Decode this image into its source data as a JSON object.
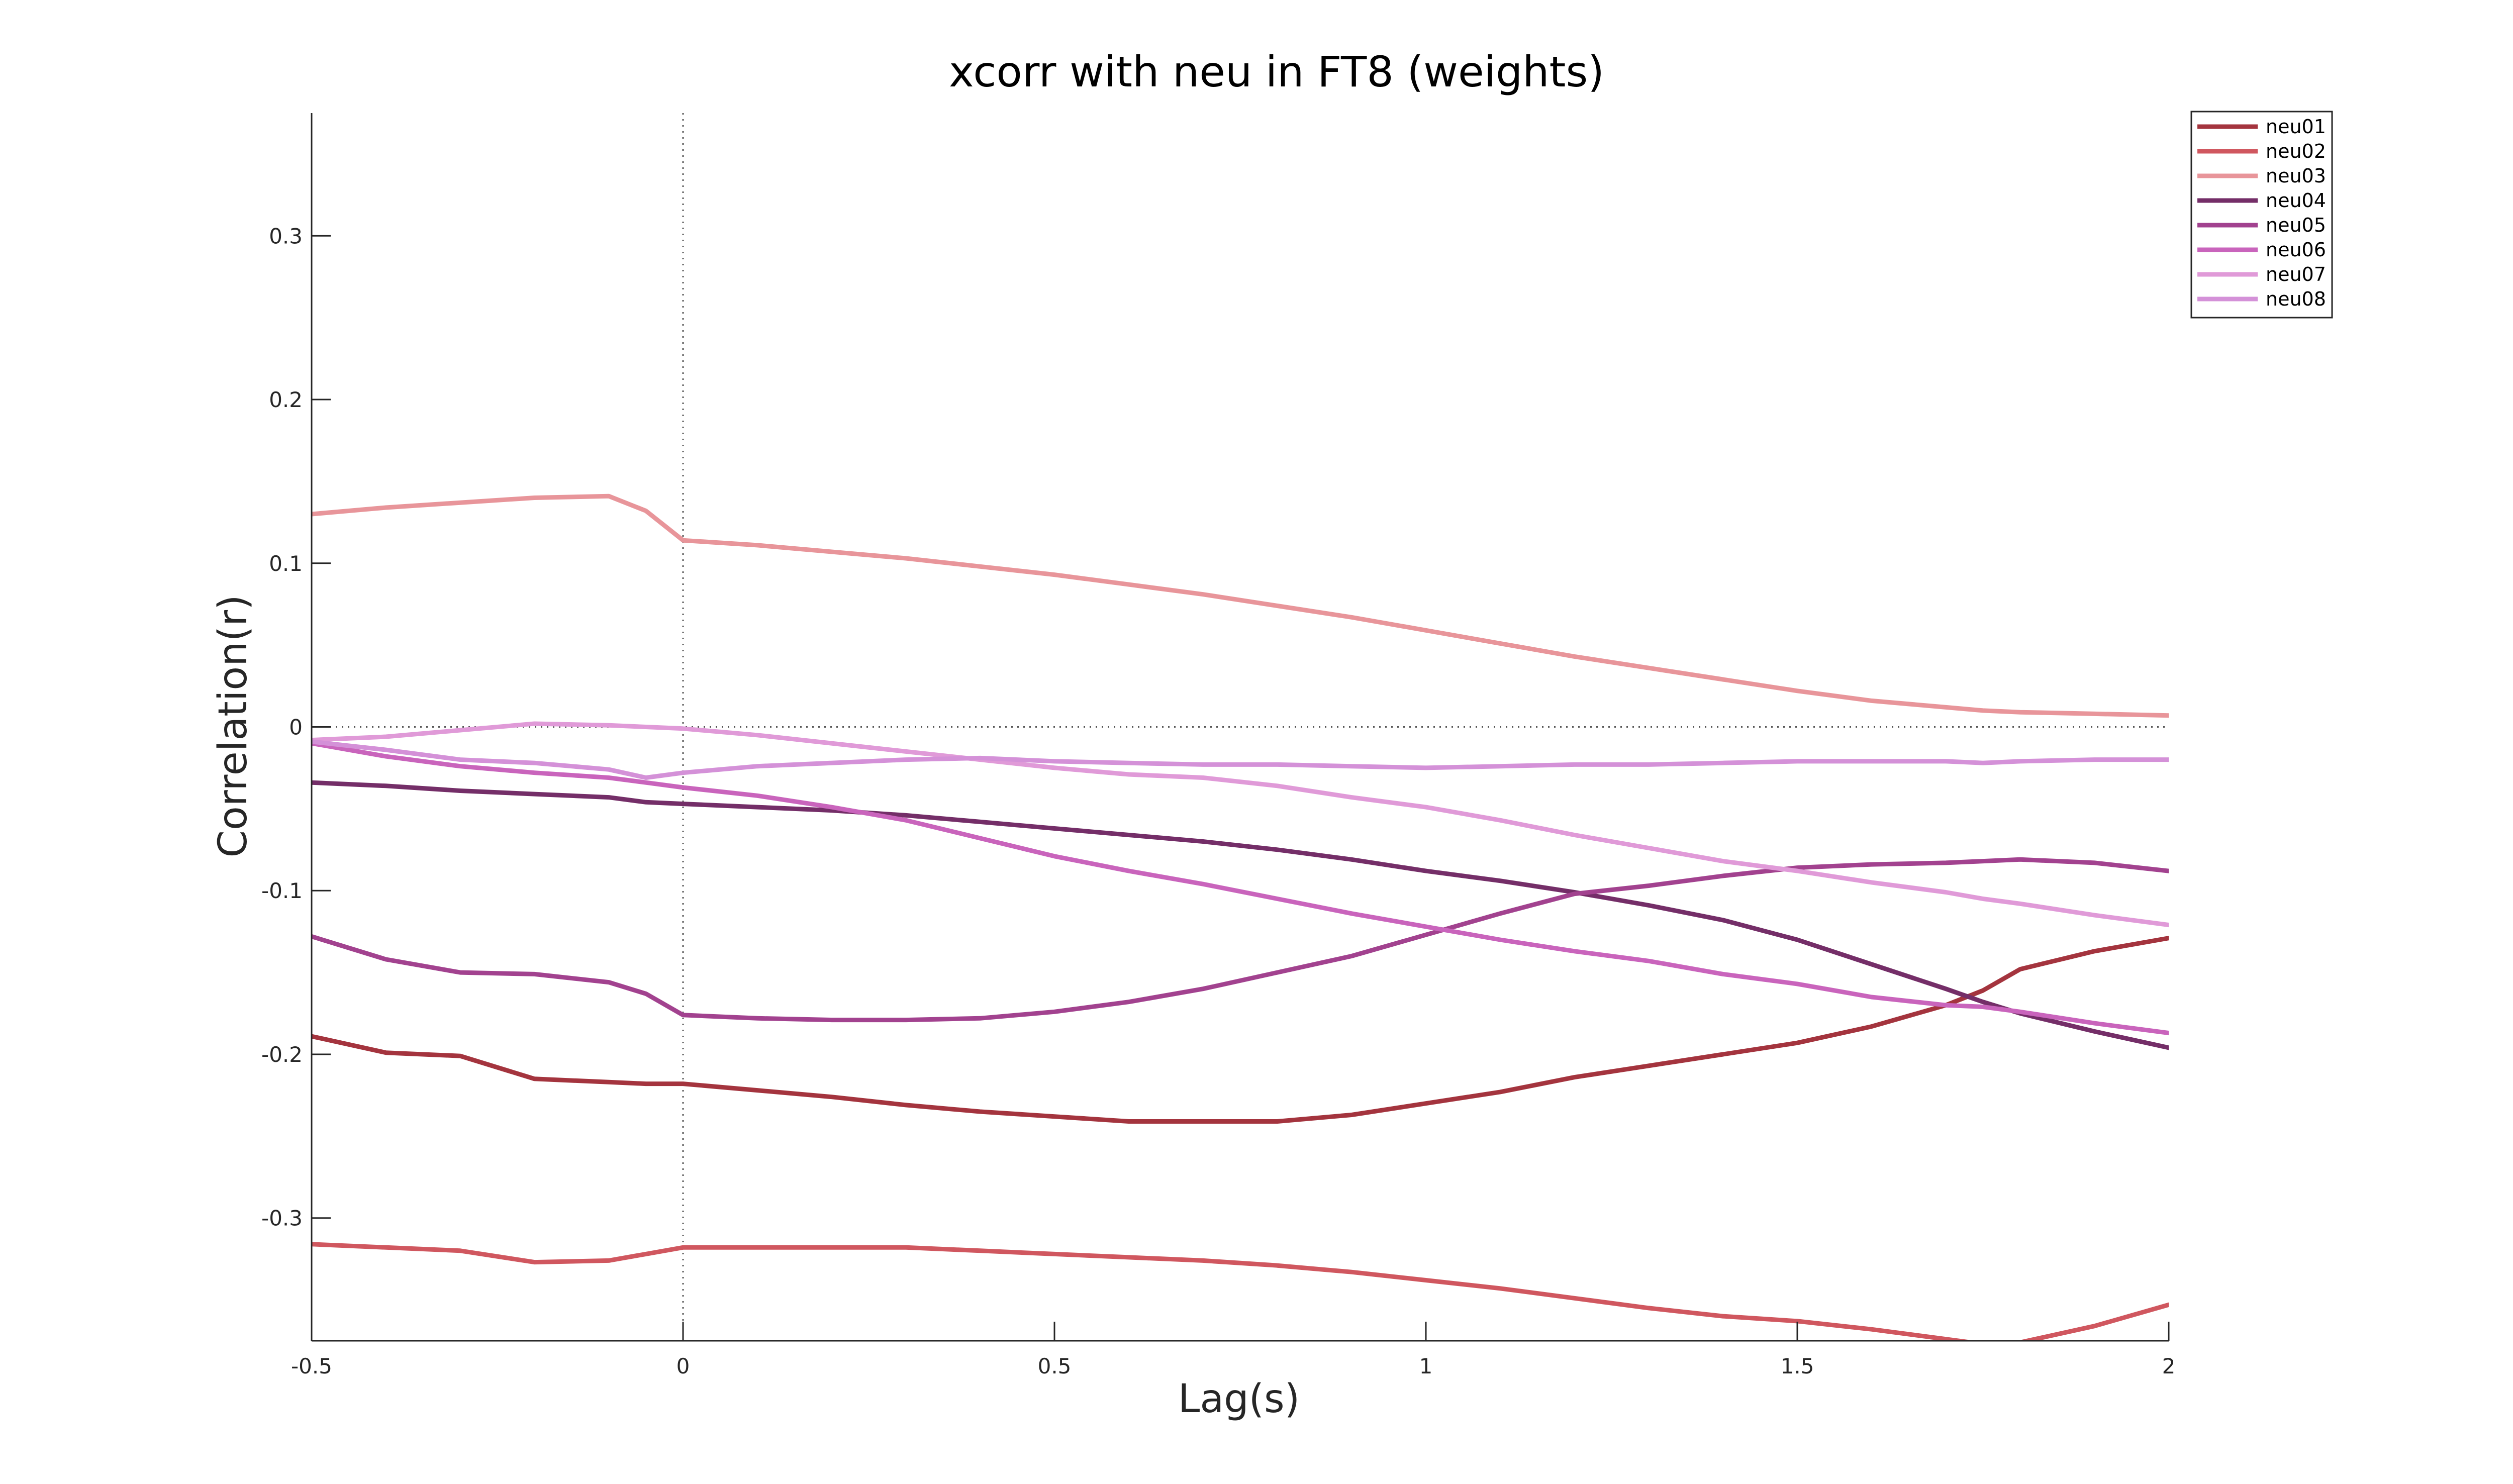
{
  "chart_data": {
    "type": "line",
    "title": "xcorr with neu in FT8 (weights)",
    "xlabel": "Lag(s)",
    "ylabel": "Correlation(r)",
    "xlim": [
      -0.5,
      2
    ],
    "ylim": [
      -0.375,
      0.375
    ],
    "xticks": [
      -0.5,
      0,
      0.5,
      1,
      1.5,
      2
    ],
    "xtick_labels": [
      "-0.5",
      "0",
      "0.5",
      "1",
      "1.5",
      "2"
    ],
    "yticks": [
      -0.3,
      -0.2,
      -0.1,
      0,
      0.1,
      0.2,
      0.3
    ],
    "ytick_labels": [
      "-0.3",
      "-0.2",
      "-0.1",
      "0",
      "0.1",
      "0.2",
      "0.3"
    ],
    "grid": false,
    "reference_lines": {
      "vertical_x": 0,
      "horizontal_y": 0
    },
    "legend_position": "top-right",
    "x": [
      -0.5,
      -0.4,
      -0.3,
      -0.2,
      -0.1,
      -0.05,
      0,
      0.1,
      0.2,
      0.3,
      0.4,
      0.5,
      0.6,
      0.7,
      0.8,
      0.9,
      1.0,
      1.1,
      1.2,
      1.3,
      1.4,
      1.5,
      1.6,
      1.7,
      1.75,
      1.8,
      1.9,
      2.0
    ],
    "series": [
      {
        "name": "neu01",
        "color": "#a4343e",
        "values": [
          -0.189,
          -0.199,
          -0.201,
          -0.215,
          -0.217,
          -0.218,
          -0.218,
          -0.222,
          -0.226,
          -0.231,
          -0.235,
          -0.238,
          -0.241,
          -0.241,
          -0.241,
          -0.237,
          -0.23,
          -0.223,
          -0.214,
          -0.207,
          -0.2,
          -0.193,
          -0.183,
          -0.17,
          -0.161,
          -0.148,
          -0.137,
          -0.129
        ]
      },
      {
        "name": "neu02",
        "color": "#d0575f",
        "values": [
          -0.316,
          -0.318,
          -0.32,
          -0.327,
          -0.326,
          -0.322,
          -0.318,
          -0.318,
          -0.318,
          -0.318,
          -0.32,
          -0.322,
          -0.324,
          -0.326,
          -0.329,
          -0.333,
          -0.338,
          -0.343,
          -0.349,
          -0.355,
          -0.36,
          -0.363,
          -0.368,
          -0.374,
          -0.377,
          -0.376,
          -0.366,
          -0.353
        ]
      },
      {
        "name": "neu03",
        "color": "#e8959a",
        "values": [
          0.13,
          0.134,
          0.137,
          0.14,
          0.141,
          0.132,
          0.114,
          0.111,
          0.107,
          0.103,
          0.098,
          0.093,
          0.087,
          0.081,
          0.074,
          0.067,
          0.059,
          0.051,
          0.043,
          0.036,
          0.029,
          0.022,
          0.016,
          0.012,
          0.01,
          0.009,
          0.008,
          0.007
        ]
      },
      {
        "name": "neu04",
        "color": "#742e68",
        "values": [
          -0.034,
          -0.036,
          -0.039,
          -0.041,
          -0.043,
          -0.046,
          -0.047,
          -0.049,
          -0.051,
          -0.054,
          -0.058,
          -0.062,
          -0.066,
          -0.07,
          -0.075,
          -0.081,
          -0.088,
          -0.094,
          -0.101,
          -0.109,
          -0.118,
          -0.13,
          -0.145,
          -0.16,
          -0.168,
          -0.175,
          -0.186,
          -0.196
        ]
      },
      {
        "name": "neu05",
        "color": "#a2428f",
        "values": [
          -0.128,
          -0.142,
          -0.15,
          -0.151,
          -0.156,
          -0.163,
          -0.176,
          -0.178,
          -0.179,
          -0.179,
          -0.178,
          -0.174,
          -0.168,
          -0.16,
          -0.15,
          -0.14,
          -0.127,
          -0.114,
          -0.102,
          -0.097,
          -0.091,
          -0.086,
          -0.084,
          -0.083,
          -0.082,
          -0.081,
          -0.083,
          -0.088
        ]
      },
      {
        "name": "neu06",
        "color": "#c964bc",
        "values": [
          -0.01,
          -0.018,
          -0.024,
          -0.028,
          -0.031,
          -0.034,
          -0.037,
          -0.042,
          -0.049,
          -0.057,
          -0.068,
          -0.079,
          -0.088,
          -0.096,
          -0.105,
          -0.114,
          -0.122,
          -0.13,
          -0.137,
          -0.143,
          -0.151,
          -0.157,
          -0.165,
          -0.17,
          -0.171,
          -0.174,
          -0.181,
          -0.187
        ]
      },
      {
        "name": "neu07",
        "color": "#e09ad8",
        "values": [
          -0.008,
          -0.006,
          -0.002,
          0.002,
          0.001,
          0.0,
          -0.001,
          -0.005,
          -0.01,
          -0.015,
          -0.02,
          -0.025,
          -0.029,
          -0.031,
          -0.036,
          -0.043,
          -0.049,
          -0.057,
          -0.066,
          -0.074,
          -0.082,
          -0.088,
          -0.095,
          -0.101,
          -0.105,
          -0.108,
          -0.115,
          -0.121
        ]
      },
      {
        "name": "neu08",
        "color": "#d491d8",
        "values": [
          -0.009,
          -0.014,
          -0.02,
          -0.022,
          -0.026,
          -0.031,
          -0.028,
          -0.024,
          -0.022,
          -0.02,
          -0.019,
          -0.021,
          -0.022,
          -0.023,
          -0.023,
          -0.024,
          -0.025,
          -0.024,
          -0.023,
          -0.023,
          -0.022,
          -0.021,
          -0.021,
          -0.021,
          -0.022,
          -0.021,
          -0.02,
          -0.02
        ]
      }
    ]
  }
}
